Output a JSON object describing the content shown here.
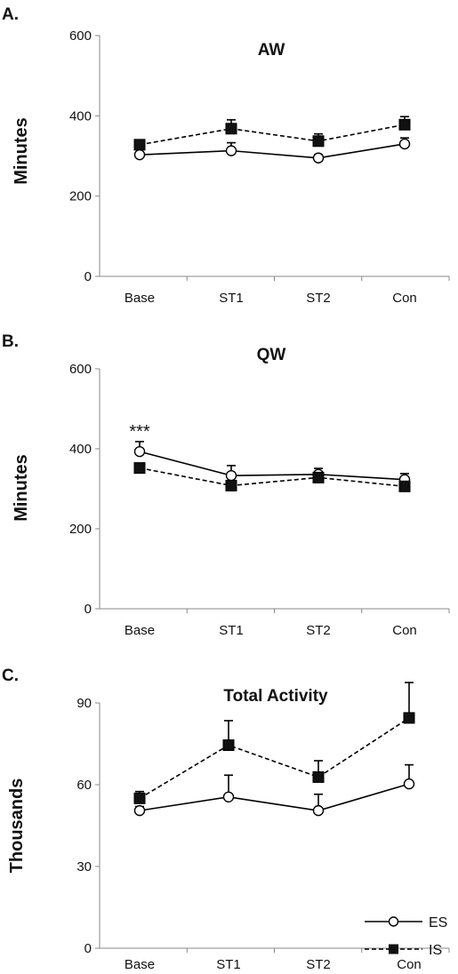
{
  "chart_data": [
    {
      "type": "line",
      "panel": "A.",
      "title": "AW",
      "xlabel": "",
      "ylabel": "Minutes",
      "categories": [
        "Base",
        "ST1",
        "ST2",
        "Con"
      ],
      "ylim": [
        0,
        600
      ],
      "yticks": [
        0,
        200,
        400,
        600
      ],
      "grid": false,
      "series": [
        {
          "name": "ES",
          "values": [
            303,
            313,
            295,
            330
          ],
          "error": [
            6,
            20,
            8,
            15
          ],
          "line": "solid",
          "marker": "open-circle",
          "color": "#000000"
        },
        {
          "name": "IS",
          "values": [
            328,
            368,
            337,
            378
          ],
          "error": [
            10,
            22,
            18,
            20
          ],
          "line": "dashed",
          "marker": "filled-square",
          "color": "#000000"
        }
      ],
      "annotations": []
    },
    {
      "type": "line",
      "panel": "B.",
      "title": "QW",
      "xlabel": "",
      "ylabel": "Minutes",
      "categories": [
        "Base",
        "ST1",
        "ST2",
        "Con"
      ],
      "ylim": [
        0,
        600
      ],
      "yticks": [
        0,
        200,
        400,
        600
      ],
      "grid": false,
      "series": [
        {
          "name": "ES",
          "values": [
            393,
            333,
            336,
            323
          ],
          "error": [
            25,
            25,
            15,
            15
          ],
          "line": "solid",
          "marker": "open-circle",
          "color": "#000000"
        },
        {
          "name": "IS",
          "values": [
            352,
            308,
            328,
            306
          ],
          "error": [
            8,
            8,
            8,
            8
          ],
          "line": "dashed",
          "marker": "filled-square",
          "color": "#000000"
        }
      ],
      "annotations": [
        {
          "text": "***",
          "category": "Base",
          "y": 425
        }
      ]
    },
    {
      "type": "line",
      "panel": "C.",
      "title": "Total Activity",
      "xlabel": "",
      "ylabel": "Thousands",
      "categories": [
        "Base",
        "ST1",
        "ST2",
        "Con"
      ],
      "ylim": [
        0,
        90
      ],
      "yticks": [
        0,
        30,
        60,
        90
      ],
      "grid": false,
      "series": [
        {
          "name": "ES",
          "values": [
            50.5,
            55.5,
            50.5,
            60.3
          ],
          "error": [
            1.5,
            8,
            6,
            7
          ],
          "line": "solid",
          "marker": "open-circle",
          "color": "#000000"
        },
        {
          "name": "IS",
          "values": [
            55,
            74.5,
            62.8,
            84.5
          ],
          "error": [
            2.5,
            9,
            6,
            13
          ],
          "line": "dashed",
          "marker": "filled-square",
          "color": "#000000"
        }
      ],
      "annotations": [],
      "legend": {
        "position": "bottom-right",
        "entries": [
          {
            "label": "ES",
            "line": "solid",
            "marker": "open-circle"
          },
          {
            "label": "IS",
            "line": "dashed",
            "marker": "filled-square"
          }
        ]
      }
    }
  ]
}
